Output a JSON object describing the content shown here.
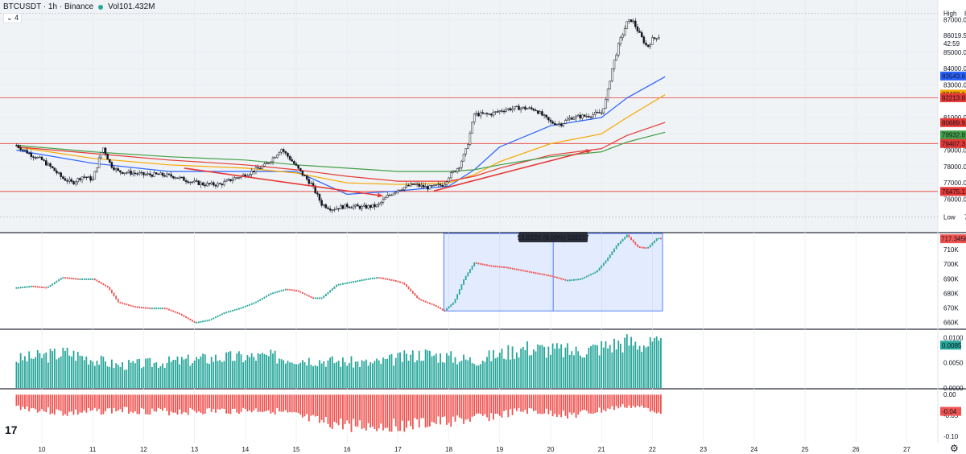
{
  "header": {
    "symbol": "BTCUSDT · 1h · Binance",
    "volume": "Vol101.432M",
    "collapse_label": "⌄ 4"
  },
  "colors": {
    "up": "#26a69a",
    "down": "#ef5350",
    "ma_blue": "#2962ff",
    "ma_orange": "#f7a600",
    "ma_red": "#e53935",
    "ma_green": "#43a047",
    "hline": "#e53935",
    "measure_fill": "#2962ff",
    "pane_bg": "#f0f3f5"
  },
  "chart_data": [
    {
      "type": "line",
      "pane": "price",
      "title": "BTCUSDT · 1h · Binance",
      "x_tick_labels": [
        "10",
        "11",
        "12",
        "13",
        "14",
        "15",
        "16",
        "17",
        "18",
        "19",
        "20",
        "21",
        "22",
        "23",
        "24",
        "25",
        "26",
        "27"
      ],
      "x": [
        9.5,
        9.8,
        10.0,
        10.2,
        10.4,
        10.6,
        10.8,
        11.0,
        11.2,
        11.35,
        11.5,
        11.8,
        12.0,
        12.3,
        12.6,
        12.9,
        13.2,
        13.5,
        13.8,
        14.0,
        14.2,
        14.4,
        14.6,
        14.7,
        14.9,
        15.1,
        15.3,
        15.5,
        15.7,
        16.0,
        16.3,
        16.6,
        16.8,
        17.0,
        17.3,
        17.6,
        17.9,
        18.0,
        18.2,
        18.35,
        18.5,
        18.8,
        19.1,
        19.4,
        19.7,
        20.0,
        20.2,
        20.4,
        20.7,
        21.0,
        21.1,
        21.2,
        21.35,
        21.5,
        21.6,
        21.75,
        21.9,
        22.0,
        22.15
      ],
      "y": [
        79300,
        78700,
        78400,
        77900,
        77300,
        77000,
        77400,
        77200,
        79200,
        78100,
        77700,
        77600,
        77500,
        77500,
        77400,
        77100,
        76900,
        76900,
        77300,
        77500,
        77800,
        78100,
        78700,
        79100,
        78400,
        77600,
        76900,
        75700,
        75400,
        75600,
        75500,
        75600,
        76200,
        76600,
        76900,
        76700,
        76900,
        77400,
        78000,
        79100,
        81200,
        81200,
        81500,
        81600,
        81500,
        80700,
        80600,
        81000,
        81100,
        81300,
        82200,
        83900,
        85600,
        86800,
        87000,
        86100,
        85300,
        85800,
        86000
      ],
      "moving_averages": [
        {
          "color": "#2962ff",
          "x": [
            9.5,
            11,
            12.5,
            14,
            15,
            16,
            17,
            18,
            18.5,
            19,
            20,
            21,
            21.5,
            22.25
          ],
          "y": [
            79000,
            78200,
            77700,
            77700,
            77700,
            76300,
            76500,
            76800,
            77800,
            79200,
            80500,
            81000,
            82200,
            83500
          ]
        },
        {
          "color": "#f7a600",
          "x": [
            9.5,
            11,
            12.5,
            14,
            15,
            16,
            17,
            18,
            18.5,
            19,
            20,
            21,
            21.5,
            22.25
          ],
          "y": [
            79200,
            78500,
            78100,
            77900,
            77600,
            77000,
            76900,
            77000,
            77500,
            78300,
            79400,
            80000,
            81000,
            82400
          ]
        },
        {
          "color": "#e53935",
          "x": [
            9.5,
            11,
            12.5,
            14,
            15,
            16,
            17,
            18,
            18.5,
            19,
            20,
            21,
            21.5,
            22.25
          ],
          "y": [
            79200,
            78800,
            78400,
            78100,
            77800,
            77400,
            77100,
            77100,
            77400,
            77900,
            78700,
            79100,
            79900,
            80700
          ]
        },
        {
          "color": "#43a047",
          "x": [
            9.5,
            11,
            12.5,
            14,
            15,
            16,
            17,
            18,
            18.5,
            19,
            20,
            21,
            21.5,
            22.25
          ],
          "y": [
            79300,
            78900,
            78600,
            78400,
            78100,
            77900,
            77700,
            77700,
            77800,
            78100,
            78600,
            78900,
            79500,
            80100
          ]
        }
      ],
      "horizontal_lines": [
        82213.8,
        79407.3,
        76475.1
      ],
      "trend_arrows": [
        {
          "x": [
            12.8,
            16.7
          ],
          "y": [
            77900,
            76200
          ]
        },
        {
          "x": [
            17.7,
            20.8
          ],
          "y": [
            76500,
            79000
          ]
        }
      ],
      "y_ticks": [
        76000,
        77000,
        78000,
        79000,
        80000,
        81000,
        83000,
        84000,
        85000,
        87000
      ],
      "ylim": [
        74000,
        88200
      ],
      "price_labels": [
        {
          "text": "High",
          "value": 87385.1,
          "label": "87385.1",
          "kind": "high"
        },
        {
          "value": 86019.5,
          "label": "86019.5",
          "sub": "42:59",
          "kind": "last"
        },
        {
          "value": 83543.6,
          "label": "83543.6",
          "color": "#2962ff"
        },
        {
          "value": 82432.1,
          "label": "82432.1",
          "color": "#f7a600"
        },
        {
          "value": 82213.8,
          "label": "82213.8",
          "color": "#e53935"
        },
        {
          "value": 80689.9,
          "label": "80689.9",
          "color": "#e53935"
        },
        {
          "value": 79932.8,
          "label": "79932.8",
          "color": "#43a047"
        },
        {
          "value": 79407.3,
          "label": "79407.3",
          "color": "#e53935"
        },
        {
          "value": 76475.1,
          "label": "76475.1",
          "color": "#e53935"
        },
        {
          "text": "Low",
          "value": 74909.4,
          "label": "74909.4",
          "kind": "low"
        }
      ]
    },
    {
      "type": "line",
      "pane": "indicator",
      "x": [
        9.5,
        9.8,
        10.1,
        10.4,
        10.7,
        11.0,
        11.3,
        11.5,
        11.8,
        12.1,
        12.4,
        12.7,
        13.0,
        13.3,
        13.6,
        13.9,
        14.2,
        14.5,
        14.8,
        15.0,
        15.3,
        15.5,
        15.8,
        16.1,
        16.4,
        16.6,
        16.9,
        17.1,
        17.4,
        17.7,
        17.9,
        18.1,
        18.3,
        18.5,
        18.8,
        19.1,
        19.4,
        19.7,
        20.0,
        20.3,
        20.6,
        20.9,
        21.1,
        21.3,
        21.5,
        21.7,
        21.9,
        22.1,
        22.2
      ],
      "y": [
        684000,
        685000,
        684000,
        691000,
        690000,
        690000,
        684000,
        674000,
        671000,
        670000,
        670000,
        666000,
        660000,
        662000,
        667000,
        670000,
        674000,
        680000,
        683000,
        682000,
        677000,
        677000,
        686000,
        688000,
        690000,
        691000,
        689000,
        687000,
        676000,
        672000,
        668000,
        674000,
        690000,
        701000,
        699000,
        698000,
        696000,
        694000,
        692000,
        689000,
        690000,
        695000,
        703000,
        713000,
        720000,
        712000,
        711000,
        718000,
        717345
      ],
      "y_ticks": [
        660000,
        670000,
        680000,
        690000,
        700000,
        710000
      ],
      "y_tick_labels": [
        "660K",
        "670K",
        "680K",
        "690K",
        "700K",
        "710K"
      ],
      "ylim": [
        656000,
        721000
      ],
      "last_value_label": "717.345K",
      "measure": {
        "x": [
          17.9,
          22.2
        ],
        "y": [
          668000,
          721000
        ],
        "label": "53.822K (8.09%) 538217"
      }
    },
    {
      "type": "bar",
      "pane": "histogram_positive",
      "color": "#26a69a",
      "x": [
        9.5,
        10.5,
        11.5,
        12.5,
        13.5,
        14.5,
        15.5,
        16.5,
        17.5,
        18.5,
        19.5,
        20.5,
        21.5,
        22.2
      ],
      "values": [
        0.0058,
        0.0072,
        0.0046,
        0.0053,
        0.0062,
        0.0064,
        0.0056,
        0.005,
        0.007,
        0.0056,
        0.0082,
        0.0074,
        0.0094,
        0.0085
      ],
      "y_ticks": [
        0.0,
        0.005,
        0.01
      ],
      "y_tick_labels": [
        "0.0000",
        "0.0050",
        "0.0100"
      ],
      "ylim": [
        0,
        0.0115
      ],
      "last_value_label": "0.0085"
    },
    {
      "type": "bar",
      "pane": "histogram_negative",
      "color": "#ef5350",
      "x": [
        9.5,
        10.5,
        11.5,
        12.5,
        13.5,
        14.5,
        15.5,
        16.5,
        17.5,
        18.5,
        19.5,
        20.5,
        21.5,
        22.2
      ],
      "values": [
        -0.03,
        -0.046,
        -0.038,
        -0.042,
        -0.04,
        -0.038,
        -0.07,
        -0.078,
        -0.072,
        -0.06,
        -0.04,
        -0.05,
        -0.028,
        -0.04
      ],
      "y_ticks": [
        0.0,
        -0.05,
        -0.1
      ],
      "y_tick_labels": [
        "0.00",
        "-0.05",
        "-0.10"
      ],
      "ylim": [
        -0.115,
        0.012
      ],
      "last_value_label": "-0.04"
    }
  ]
}
